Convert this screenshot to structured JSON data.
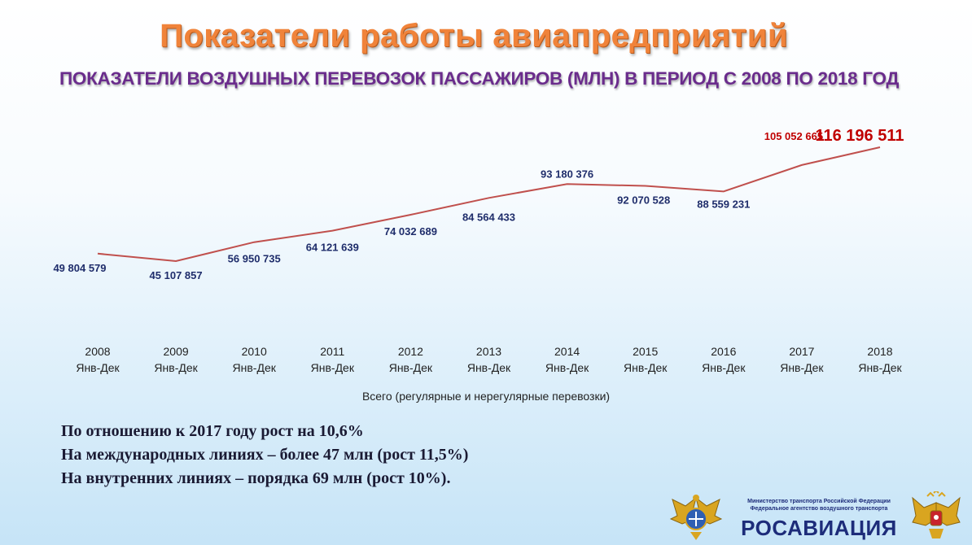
{
  "header": {
    "title": "Показатели работы авиапредприятий",
    "subtitle": "ПОКАЗАТЕЛИ ВОЗДУШНЫХ ПЕРЕВОЗОК ПАССАЖИРОВ  (МЛН) В ПЕРИОД С 2008 ПО 2018 ГОД"
  },
  "chart_data": {
    "type": "line",
    "title": "",
    "xlabel": "Всего (регулярные и нерегулярные перевозки)",
    "ylabel": "",
    "categories": [
      "2008",
      "2009",
      "2010",
      "2011",
      "2012",
      "2013",
      "2014",
      "2015",
      "2016",
      "2017",
      "2018"
    ],
    "category_sublabel": "Янв-Дек",
    "series": [
      {
        "name": "",
        "color": "#c0504d",
        "values": [
          49804579,
          45107857,
          56950735,
          64121639,
          74032689,
          84564433,
          93180376,
          92070528,
          88559231,
          105052665,
          116196511
        ],
        "labels": [
          "49 804 579",
          "45 107 857",
          "56 950 735",
          "64 121 639",
          "74 032 689",
          "84 564 433",
          "93 180 376",
          "92 070 528",
          "88 559 231",
          "105 052 665",
          "116 196 511"
        ]
      }
    ],
    "highlight_color": "#c00000",
    "label_color": "#1f2d6b",
    "grid": false,
    "legend": "none"
  },
  "notes": [
    "По отношению к 2017 году рост на 10,6%",
    "На международных линиях – более 47 млн (рост 11,5%)",
    "На внутренних линиях – порядка 69 млн (рост 10%)."
  ],
  "logo": {
    "ministry_line1": "Министерство транспорта Российской Федерации",
    "ministry_line2": "Федеральное агентство воздушного транспорта",
    "brand": "РОСАВИАЦИЯ"
  }
}
